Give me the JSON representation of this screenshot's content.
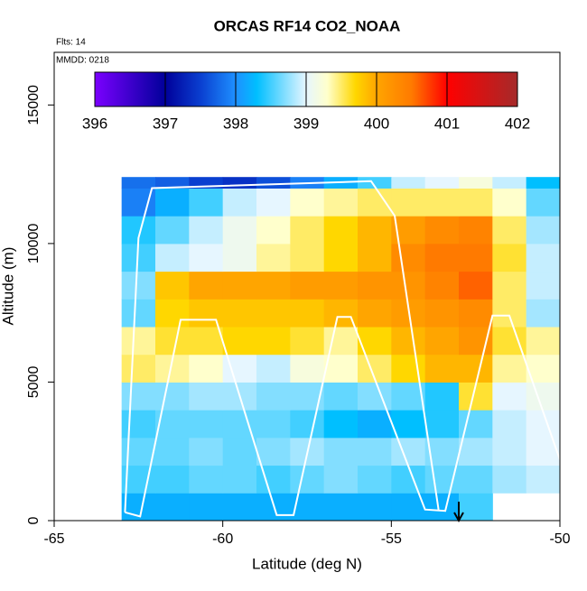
{
  "chart_data": {
    "type": "heatmap",
    "title": "ORCAS RF14 CO2_NOAA",
    "annotations": [
      "Flts: 14",
      "MMDD: 0218"
    ],
    "x_label": "Latitude (deg N)",
    "y_label": "Altitude (m)",
    "xlim": [
      -65,
      -50
    ],
    "xticks": [
      -65,
      -60,
      -55,
      -50
    ],
    "ylim": [
      0,
      16900
    ],
    "yticks": [
      0,
      5000,
      10000,
      15000
    ],
    "x_edges": [
      -63,
      -62,
      -61,
      -60,
      -59,
      -58,
      -57,
      -56,
      -55,
      -54,
      -53,
      -52,
      -51,
      -50
    ],
    "y_edges": [
      0,
      1000,
      2000,
      3000,
      4000,
      5000,
      6000,
      7000,
      8000,
      9000,
      10000,
      11000,
      12000,
      12400
    ],
    "z": [
      [
        398.2,
        398.2,
        398.2,
        398.2,
        398.2,
        398.2,
        398.2,
        398.2,
        398.2,
        398.2,
        398.5,
        null,
        null
      ],
      [
        398.5,
        398.5,
        398.6,
        398.6,
        398.5,
        398.6,
        398.7,
        398.6,
        398.5,
        398.6,
        398.6,
        398.8,
        398.9
      ],
      [
        398.6,
        398.6,
        398.7,
        398.6,
        398.7,
        398.8,
        398.7,
        398.7,
        398.8,
        398.7,
        398.8,
        398.9,
        399.0
      ],
      [
        398.5,
        398.6,
        398.6,
        398.6,
        398.6,
        398.5,
        398.3,
        398.2,
        398.3,
        398.4,
        398.6,
        398.9,
        399.0
      ],
      [
        398.7,
        398.7,
        398.8,
        398.8,
        398.7,
        398.7,
        398.6,
        398.7,
        398.6,
        398.4,
        399.6,
        399.0,
        399.1
      ],
      [
        399.5,
        399.4,
        399.3,
        399.0,
        398.9,
        399.2,
        399.3,
        399.5,
        399.7,
        399.9,
        399.9,
        399.4,
        399.3
      ],
      [
        399.4,
        399.6,
        399.6,
        399.7,
        399.7,
        399.6,
        399.4,
        399.7,
        399.9,
        400.0,
        400.2,
        399.6,
        399.4
      ],
      [
        398.6,
        399.7,
        399.8,
        399.8,
        399.8,
        399.8,
        399.9,
        400.0,
        400.1,
        400.2,
        400.3,
        399.5,
        398.8
      ],
      [
        398.7,
        399.8,
        400.0,
        400.0,
        400.0,
        400.1,
        400.1,
        400.2,
        400.2,
        400.4,
        400.6,
        399.5,
        398.9
      ],
      [
        398.5,
        398.9,
        399.0,
        399.1,
        399.4,
        399.5,
        399.7,
        399.9,
        400.3,
        400.5,
        400.5,
        399.6,
        398.9
      ],
      [
        398.4,
        398.6,
        398.9,
        399.1,
        399.3,
        399.5,
        399.7,
        399.9,
        400.1,
        400.3,
        400.4,
        399.5,
        398.8
      ],
      [
        397.9,
        398.2,
        398.5,
        398.9,
        399.0,
        399.3,
        399.4,
        399.5,
        399.5,
        399.5,
        399.5,
        399.3,
        398.6
      ],
      [
        397.8,
        397.7,
        397.5,
        397.4,
        397.6,
        397.9,
        398.2,
        398.5,
        398.9,
        399.0,
        399.2,
        398.9,
        398.3
      ]
    ],
    "colorbar": {
      "lim": [
        396,
        402
      ],
      "ticks": [
        396,
        397,
        398,
        399,
        400,
        401,
        402
      ],
      "scale": [
        {
          "value": 396,
          "color": "#7b00ff"
        },
        {
          "value": 397,
          "color": "#00009a"
        },
        {
          "value": 397.5,
          "color": "#0a3fd0"
        },
        {
          "value": 398,
          "color": "#1e90ff"
        },
        {
          "value": 398.3,
          "color": "#00bfff"
        },
        {
          "value": 399,
          "color": "#e6f6ff"
        },
        {
          "value": 399.3,
          "color": "#ffffcc"
        },
        {
          "value": 399.7,
          "color": "#ffd700"
        },
        {
          "value": 400,
          "color": "#ffa500"
        },
        {
          "value": 400.5,
          "color": "#ff7a00"
        },
        {
          "value": 401,
          "color": "#ff0000"
        },
        {
          "value": 402,
          "color": "#a52a2a"
        }
      ]
    },
    "track": {
      "color": "#ffffff",
      "x": [
        -62.9,
        -62.45,
        -61.25,
        -60.2,
        -58.4,
        -57.9,
        -56.6,
        -56.2,
        -54.0,
        -53.4,
        -52.0,
        -51.5,
        -50.0,
        null,
        -62.9,
        -62.5,
        -62.1,
        -55.6,
        -54.9,
        -53.6
      ],
      "y": [
        300,
        150,
        7250,
        7250,
        200,
        200,
        7350,
        7350,
        400,
        350,
        7400,
        7400,
        2200,
        null,
        300,
        10200,
        12000,
        12250,
        11000,
        400
      ]
    },
    "marker_x": -53
  }
}
